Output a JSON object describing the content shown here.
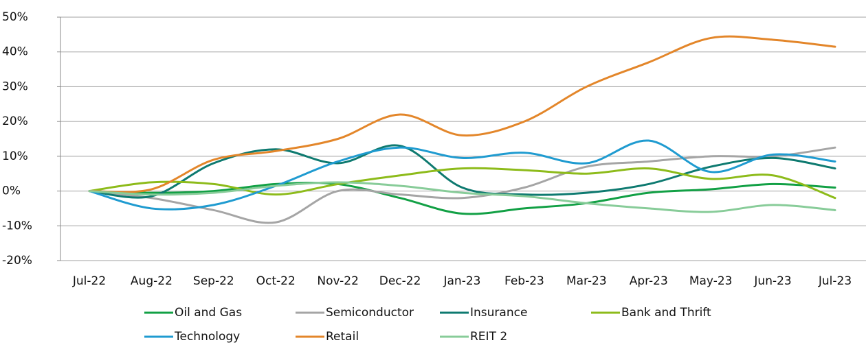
{
  "chart_data": {
    "type": "line",
    "categories": [
      "Jul-22",
      "Aug-22",
      "Sep-22",
      "Oct-22",
      "Nov-22",
      "Dec-22",
      "Jan-23",
      "Feb-23",
      "Mar-23",
      "Apr-23",
      "May-23",
      "Jun-23",
      "Jul-23"
    ],
    "series": [
      {
        "name": "Oil and Gas",
        "color": "#12a045",
        "values": [
          0,
          -0.5,
          0,
          2,
          2,
          -2,
          -6.5,
          -5,
          -3.5,
          -0.5,
          0.5,
          2,
          1
        ]
      },
      {
        "name": "Semiconductor",
        "color": "#a5a5a5",
        "values": [
          0,
          -2,
          -5.5,
          -9,
          0,
          -1,
          -2,
          1,
          7,
          8.5,
          10,
          10,
          12.5
        ]
      },
      {
        "name": "Insurance",
        "color": "#0e7a70",
        "values": [
          0,
          -1.5,
          8,
          12,
          8,
          13,
          1,
          -1,
          -0.5,
          2,
          7,
          9.5,
          6.5
        ]
      },
      {
        "name": "Bank and Thrift",
        "color": "#8dbb1a",
        "values": [
          0,
          2.5,
          2,
          -1,
          2,
          4.5,
          6.5,
          6,
          5,
          6.5,
          3.5,
          4.5,
          -2
        ]
      },
      {
        "name": "Technology",
        "color": "#1f9bd0",
        "values": [
          0,
          -5,
          -4,
          1.5,
          8.5,
          12.5,
          9.5,
          11,
          8,
          14.5,
          5.5,
          10.5,
          8.5
        ]
      },
      {
        "name": "Retail",
        "color": "#e3862a",
        "values": [
          0,
          0.5,
          9,
          11.5,
          15,
          22,
          16,
          20,
          30,
          37,
          44,
          43.5,
          41.5
        ]
      },
      {
        "name": "REIT 2",
        "color": "#88cc99",
        "values": [
          0,
          -1,
          -0.5,
          1.5,
          2.5,
          1.5,
          -0.5,
          -1.5,
          -3.5,
          -5,
          -6,
          -4,
          -5.5
        ]
      }
    ],
    "ylim": [
      -20,
      50
    ],
    "yticks": [
      {
        "value": -20,
        "label": "-20%"
      },
      {
        "value": -10,
        "label": "-10%"
      },
      {
        "value": 0,
        "label": "0%"
      },
      {
        "value": 10,
        "label": "10%"
      },
      {
        "value": 20,
        "label": "20%"
      },
      {
        "value": 30,
        "label": "30%"
      },
      {
        "value": 40,
        "label": "40%"
      },
      {
        "value": 50,
        "label": "50%"
      }
    ],
    "grid": true
  }
}
